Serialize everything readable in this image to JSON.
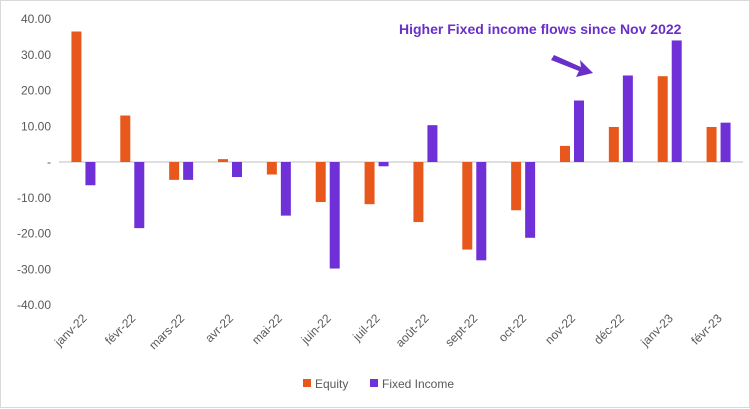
{
  "chart_data": {
    "type": "bar",
    "categories": [
      "janv-22",
      "févr-22",
      "mars-22",
      "avr-22",
      "mai-22",
      "juin-22",
      "juil-22",
      "août-22",
      "sept-22",
      "oct-22",
      "nov-22",
      "déc-22",
      "janv-23",
      "févr-23"
    ],
    "series": [
      {
        "name": "Equity",
        "color": "#e8581c",
        "values": [
          36.5,
          13.0,
          -5.0,
          0.8,
          -3.5,
          -11.2,
          -11.8,
          -16.8,
          -24.5,
          -13.5,
          4.5,
          9.8,
          24.0,
          9.8
        ]
      },
      {
        "name": "Fixed Income",
        "color": "#7030d8",
        "values": [
          -6.5,
          -18.5,
          -5.0,
          -4.2,
          -15.0,
          -29.8,
          -1.2,
          10.3,
          -27.5,
          -21.2,
          17.2,
          24.2,
          34.0,
          11.0
        ]
      }
    ],
    "ylim": [
      -40,
      40
    ],
    "yticks": [
      40,
      30,
      20,
      10,
      0,
      -10,
      -20,
      -30,
      -40
    ],
    "ytick_labels": [
      "40.00",
      "30.00",
      "20.00",
      "10.00",
      "-",
      "-10.00",
      "-20.00",
      "-30.00",
      "-40.00"
    ],
    "grid": false,
    "legend_position": "bottom-center",
    "annotation": {
      "text": "Higher Fixed income flows since Nov 2022",
      "color": "#6b2fc9"
    }
  }
}
